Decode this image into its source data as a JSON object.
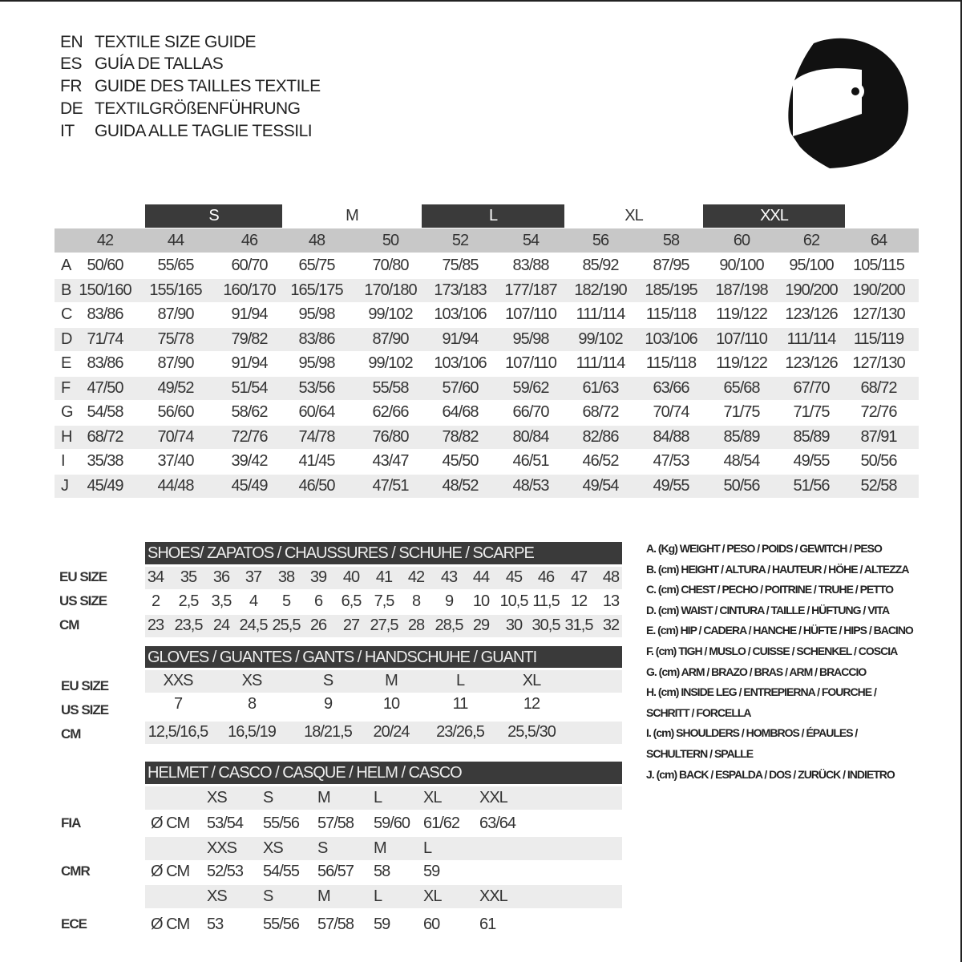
{
  "titles": [
    {
      "code": "EN",
      "text": "TEXTILE SIZE GUIDE"
    },
    {
      "code": "ES",
      "text": "GUÍA DE TALLAS"
    },
    {
      "code": "FR",
      "text": "GUIDE DES TAILLES TEXTILE"
    },
    {
      "code": "DE",
      "text": "TEXTILGRÖßENFÜHRUNG"
    },
    {
      "code": "IT",
      "text": "GUIDA ALLE TAGLIE TESSILI"
    }
  ],
  "icon": "helmet-icon",
  "textile": {
    "size_bands": [
      "S",
      "M",
      "L",
      "XL",
      "XXL"
    ],
    "sizes": [
      "42",
      "44",
      "46",
      "48",
      "50",
      "52",
      "54",
      "56",
      "58",
      "60",
      "62",
      "64"
    ],
    "rows": [
      {
        "label": "A",
        "values": [
          "50/60",
          "55/65",
          "60/70",
          "65/75",
          "70/80",
          "75/85",
          "83/88",
          "85/92",
          "87/95",
          "90/100",
          "95/100",
          "105/115"
        ]
      },
      {
        "label": "B",
        "values": [
          "150/160",
          "155/165",
          "160/170",
          "165/175",
          "170/180",
          "173/183",
          "177/187",
          "182/190",
          "185/195",
          "187/198",
          "190/200",
          "190/200"
        ]
      },
      {
        "label": "C",
        "values": [
          "83/86",
          "87/90",
          "91/94",
          "95/98",
          "99/102",
          "103/106",
          "107/110",
          "111/114",
          "115/118",
          "119/122",
          "123/126",
          "127/130"
        ]
      },
      {
        "label": "D",
        "values": [
          "71/74",
          "75/78",
          "79/82",
          "83/86",
          "87/90",
          "91/94",
          "95/98",
          "99/102",
          "103/106",
          "107/110",
          "111/114",
          "115/119"
        ]
      },
      {
        "label": "E",
        "values": [
          "83/86",
          "87/90",
          "91/94",
          "95/98",
          "99/102",
          "103/106",
          "107/110",
          "111/114",
          "115/118",
          "119/122",
          "123/126",
          "127/130"
        ]
      },
      {
        "label": "F",
        "values": [
          "47/50",
          "49/52",
          "51/54",
          "53/56",
          "55/58",
          "57/60",
          "59/62",
          "61/63",
          "63/66",
          "65/68",
          "67/70",
          "68/72"
        ]
      },
      {
        "label": "G",
        "values": [
          "54/58",
          "56/60",
          "58/62",
          "60/64",
          "62/66",
          "64/68",
          "66/70",
          "68/72",
          "70/74",
          "71/75",
          "71/75",
          "72/76"
        ]
      },
      {
        "label": "H",
        "values": [
          "68/72",
          "70/74",
          "72/76",
          "74/78",
          "76/80",
          "78/82",
          "80/84",
          "82/86",
          "84/88",
          "85/89",
          "85/89",
          "87/91"
        ]
      },
      {
        "label": "I",
        "values": [
          "35/38",
          "37/40",
          "39/42",
          "41/45",
          "43/47",
          "45/50",
          "46/51",
          "46/52",
          "47/53",
          "48/54",
          "49/55",
          "50/56"
        ]
      },
      {
        "label": "J",
        "values": [
          "45/49",
          "44/48",
          "45/49",
          "46/50",
          "47/51",
          "48/52",
          "48/53",
          "49/54",
          "49/55",
          "50/56",
          "51/56",
          "52/58"
        ]
      }
    ]
  },
  "shoes": {
    "title": "SHOES/ ZAPATOS / CHAUSSURES / SCHUHE / SCARPE",
    "rows": [
      {
        "label": "EU SIZE",
        "values": [
          "34",
          "35",
          "36",
          "37",
          "38",
          "39",
          "40",
          "41",
          "42",
          "43",
          "44",
          "45",
          "46",
          "47",
          "48"
        ]
      },
      {
        "label": "US SIZE",
        "values": [
          "2",
          "2,5",
          "3,5",
          "4",
          "5",
          "6",
          "6,5",
          "7,5",
          "8",
          "9",
          "10",
          "10,5",
          "11,5",
          "12",
          "13"
        ]
      },
      {
        "label": "CM",
        "values": [
          "23",
          "23,5",
          "24",
          "24,5",
          "25,5",
          "26",
          "27",
          "27,5",
          "28",
          "28,5",
          "29",
          "30",
          "30,5",
          "31,5",
          "32"
        ]
      }
    ]
  },
  "gloves": {
    "title": "GLOVES / GUANTES / GANTS / HANDSCHUHE / GUANTI",
    "rows": [
      {
        "label": "EU SIZE",
        "values": [
          "XXS",
          "XS",
          "S",
          "M",
          "L",
          "XL"
        ]
      },
      {
        "label": "US SIZE",
        "values": [
          "7",
          "8",
          "9",
          "10",
          "11",
          "12"
        ]
      },
      {
        "label": "CM",
        "values": [
          "12,5/16,5",
          "16,5/19",
          "18/21,5",
          "20/24",
          "23/26,5",
          "25,5/30"
        ]
      }
    ]
  },
  "helmet": {
    "title": "HELMET / CASCO / CASQUE / HELM / CASCO",
    "unit": "Ø CM",
    "groups": [
      {
        "label": "FIA",
        "sizes": [
          "XS",
          "S",
          "M",
          "L",
          "XL",
          "XXL"
        ],
        "values": [
          "53/54",
          "55/56",
          "57/58",
          "59/60",
          "61/62",
          "63/64"
        ]
      },
      {
        "label": "CMR",
        "sizes": [
          "XXS",
          "XS",
          "S",
          "M",
          "L"
        ],
        "values": [
          "52/53",
          "54/55",
          "56/57",
          "58",
          "59"
        ]
      },
      {
        "label": "ECE",
        "sizes": [
          "XS",
          "S",
          "M",
          "L",
          "XL",
          "XXL"
        ],
        "values": [
          "53",
          "55/56",
          "57/58",
          "59",
          "60",
          "61"
        ]
      }
    ]
  },
  "legend": [
    "A. (Kg) WEIGHT / PESO / POIDS / GEWITCH / PESO",
    "B. (cm) HEIGHT / ALTURA / HAUTEUR / HÖHE / ALTEZZA",
    "C. (cm) CHEST / PECHO / POITRINE / TRUHE / PETTO",
    "D. (cm) WAIST / CINTURA / TAILLE / HÜFTUNG / VITA",
    "E. (cm) HIP / CADERA / HANCHE / HÜFTE / HIPS /  BACINO",
    "F.  (cm) TIGH / MUSLO / CUISSE / SCHENKEL / COSCIA",
    "G. (cm) ARM  / BRAZO / BRAS / ARM / BRACCIO",
    "H. (cm) INSIDE LEG / ENTREPIERNA / FOURCHE /",
    "SCHRITT / FORCELLA",
    "I.  (cm) SHOULDERS / HOMBROS / ÉPAULES /",
    "SCHULTERN / SPALLE",
    "J. (cm) BACK / ESPALDA / DOS / ZURÜCK / INDIETRO"
  ],
  "colors": {
    "dark_header": "#3a3a3a",
    "size_band": "#c8c8c8",
    "row_shade": "#ececec"
  }
}
